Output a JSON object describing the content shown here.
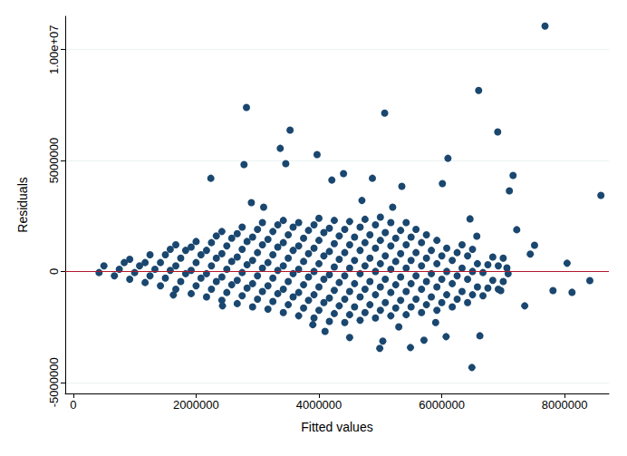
{
  "chart_data": {
    "type": "scatter",
    "x_label": "Fitted values",
    "y_label": "Residuals",
    "color": "#1a476f",
    "marker": "circle",
    "grid": true,
    "reference_y": 0,
    "xlim": [
      -130000,
      8720000
    ],
    "ylim": [
      -5500000,
      11500000
    ],
    "xticks": [
      0,
      2000000,
      4000000,
      6000000,
      8000000
    ],
    "yticks": [
      -5000000,
      0,
      5000000,
      {
        "value": 10000000,
        "label": "1.00e+07"
      }
    ],
    "x": [
      420000,
      500000,
      670000,
      750000,
      830000,
      920000,
      1000000,
      1080000,
      920000,
      1170000,
      1250000,
      1330000,
      1170000,
      1250000,
      1420000,
      1500000,
      1580000,
      1420000,
      1500000,
      1580000,
      1670000,
      1750000,
      1830000,
      1670000,
      1750000,
      1830000,
      1670000,
      1920000,
      2000000,
      2080000,
      1920000,
      2000000,
      2080000,
      1920000,
      2000000,
      2170000,
      2250000,
      2330000,
      2170000,
      2250000,
      2330000,
      2170000,
      2250000,
      2330000,
      2420000,
      2500000,
      2580000,
      2420000,
      2500000,
      2580000,
      2420000,
      2500000,
      2580000,
      2420000,
      2670000,
      2750000,
      2830000,
      2670000,
      2750000,
      2830000,
      2670000,
      2750000,
      2830000,
      2670000,
      2750000,
      2920000,
      3000000,
      3080000,
      2920000,
      3000000,
      3080000,
      2920000,
      3000000,
      3080000,
      2920000,
      3000000,
      3080000,
      3170000,
      3250000,
      3330000,
      3170000,
      3250000,
      3330000,
      3170000,
      3250000,
      3330000,
      3170000,
      3250000,
      3330000,
      3420000,
      3500000,
      3580000,
      3420000,
      3500000,
      3580000,
      3420000,
      3500000,
      3580000,
      3420000,
      3500000,
      3580000,
      3420000,
      3670000,
      3750000,
      3830000,
      3670000,
      3750000,
      3830000,
      3670000,
      3750000,
      3830000,
      3670000,
      3750000,
      3830000,
      3670000,
      3920000,
      4000000,
      4080000,
      3920000,
      4000000,
      4080000,
      3920000,
      4000000,
      4080000,
      3920000,
      4000000,
      4080000,
      3920000,
      4000000,
      4170000,
      4250000,
      4330000,
      4170000,
      4250000,
      4330000,
      4170000,
      4250000,
      4330000,
      4170000,
      4250000,
      4330000,
      4170000,
      4250000,
      4420000,
      4500000,
      4580000,
      4420000,
      4500000,
      4580000,
      4420000,
      4500000,
      4580000,
      4420000,
      4500000,
      4580000,
      4420000,
      4500000,
      4670000,
      4750000,
      4830000,
      4670000,
      4750000,
      4830000,
      4670000,
      4750000,
      4830000,
      4670000,
      4750000,
      4830000,
      4670000,
      4750000,
      4920000,
      5000000,
      5080000,
      4920000,
      5000000,
      5080000,
      4920000,
      5000000,
      5080000,
      4920000,
      5000000,
      5080000,
      4920000,
      5000000,
      5170000,
      5250000,
      5330000,
      5170000,
      5250000,
      5330000,
      5170000,
      5250000,
      5330000,
      5170000,
      5250000,
      5330000,
      5170000,
      5420000,
      5500000,
      5580000,
      5420000,
      5500000,
      5580000,
      5420000,
      5500000,
      5580000,
      5420000,
      5500000,
      5580000,
      5420000,
      5670000,
      5750000,
      5830000,
      5670000,
      5750000,
      5830000,
      5670000,
      5750000,
      5830000,
      5670000,
      5750000,
      5920000,
      6000000,
      6080000,
      5920000,
      6000000,
      6080000,
      5920000,
      6000000,
      6080000,
      5920000,
      6170000,
      6250000,
      6330000,
      6170000,
      6250000,
      6330000,
      6170000,
      6250000,
      6330000,
      6420000,
      6500000,
      6580000,
      6420000,
      6500000,
      6580000,
      6420000,
      6500000,
      6670000,
      6750000,
      6830000,
      6670000,
      6750000,
      6830000,
      6920000,
      7000000,
      7080000,
      6920000,
      7000000,
      7680000,
      2820000,
      5070000,
      6600000,
      6910000,
      3530000,
      3370000,
      3460000,
      3970000,
      2780000,
      6100000,
      8590000,
      4870000,
      2240000,
      7160000,
      7100000,
      4400000,
      4210000,
      5350000,
      6010000,
      6460000,
      6570000,
      7440000,
      8040000,
      8120000,
      7810000,
      8410000,
      7350000,
      6490000,
      5490000,
      4990000,
      4500000,
      5040000,
      6070000,
      6620000,
      5710000,
      6960000,
      7060000,
      7220000,
      7510000,
      2430000,
      1630000,
      2900000,
      3100000,
      4700000,
      5200000,
      4100000,
      3900000,
      5900000,
      5300000
    ],
    "values": [
      -50000,
      250000,
      -200000,
      100000,
      400000,
      -350000,
      -50000,
      250000,
      550000,
      -500000,
      -200000,
      100000,
      400000,
      750000,
      -650000,
      -300000,
      50000,
      400000,
      750000,
      1000000,
      -800000,
      -450000,
      -100000,
      250000,
      600000,
      950000,
      1200000,
      -1000000,
      -650000,
      -300000,
      50000,
      400000,
      750000,
      1100000,
      1350000,
      -1150000,
      -800000,
      -450000,
      -100000,
      250000,
      600000,
      950000,
      1300000,
      1600000,
      -1300000,
      -950000,
      -600000,
      -250000,
      100000,
      450000,
      800000,
      1150000,
      1500000,
      1800000,
      -1450000,
      -1100000,
      -750000,
      -400000,
      -50000,
      300000,
      650000,
      1000000,
      1350000,
      1700000,
      2000000,
      -1600000,
      -1250000,
      -900000,
      -550000,
      -200000,
      150000,
      500000,
      850000,
      1200000,
      1550000,
      1900000,
      2200000,
      -1700000,
      -1350000,
      -1000000,
      -650000,
      -300000,
      50000,
      400000,
      750000,
      1100000,
      1450000,
      1800000,
      2100000,
      -1850000,
      -1500000,
      -1150000,
      -800000,
      -450000,
      -100000,
      250000,
      600000,
      950000,
      1300000,
      1650000,
      2000000,
      2300000,
      -2000000,
      -1650000,
      -1300000,
      -950000,
      -600000,
      -250000,
      100000,
      450000,
      800000,
      1150000,
      1500000,
      1850000,
      2200000,
      -2100000,
      -1750000,
      -1400000,
      -1050000,
      -700000,
      -350000,
      0,
      350000,
      700000,
      1050000,
      1400000,
      1750000,
      2100000,
      2400000,
      -2250000,
      -1900000,
      -1550000,
      -1200000,
      -850000,
      -500000,
      -150000,
      200000,
      550000,
      900000,
      1250000,
      1600000,
      1950000,
      2300000,
      -2300000,
      -1950000,
      -1600000,
      -1250000,
      -900000,
      -550000,
      -200000,
      150000,
      500000,
      850000,
      1200000,
      1550000,
      1900000,
      2250000,
      -2200000,
      -1850000,
      -1500000,
      -1150000,
      -800000,
      -450000,
      -100000,
      250000,
      600000,
      950000,
      1300000,
      1650000,
      2000000,
      2350000,
      -2100000,
      -1750000,
      -1400000,
      -1050000,
      -700000,
      -350000,
      0,
      350000,
      700000,
      1050000,
      1400000,
      1750000,
      2100000,
      2450000,
      -2000000,
      -1650000,
      -1300000,
      -950000,
      -600000,
      -250000,
      100000,
      450000,
      800000,
      1150000,
      1500000,
      1850000,
      2200000,
      -1950000,
      -1600000,
      -1250000,
      -900000,
      -550000,
      -200000,
      150000,
      500000,
      850000,
      1200000,
      1550000,
      1900000,
      2200000,
      -1850000,
      -1500000,
      -1150000,
      -800000,
      -450000,
      -100000,
      250000,
      600000,
      950000,
      1300000,
      1650000,
      -1750000,
      -1400000,
      -1050000,
      -700000,
      -350000,
      0,
      350000,
      700000,
      1050000,
      1400000,
      -1600000,
      -1250000,
      -900000,
      -550000,
      -200000,
      150000,
      500000,
      850000,
      1200000,
      -1400000,
      -1050000,
      -700000,
      -350000,
      0,
      350000,
      700000,
      1000000,
      -1100000,
      -750000,
      -400000,
      -50000,
      300000,
      650000,
      -800000,
      -450000,
      -100000,
      250000,
      600000,
      11060000,
      7390000,
      7140000,
      8160000,
      6290000,
      6370000,
      5550000,
      4860000,
      5270000,
      4820000,
      5100000,
      3430000,
      4200000,
      4200000,
      4330000,
      3630000,
      4410000,
      4120000,
      3840000,
      3960000,
      2370000,
      1590000,
      780000,
      370000,
      -940000,
      -860000,
      -410000,
      -1550000,
      -4330000,
      -3430000,
      -3470000,
      -2980000,
      -3140000,
      -2940000,
      -2900000,
      -3100000,
      -860000,
      160000,
      1880000,
      1180000,
      -1550000,
      -1060000,
      3100000,
      2900000,
      3200000,
      2900000,
      -2700000,
      -2400000,
      -2300000,
      -2500000
    ]
  }
}
